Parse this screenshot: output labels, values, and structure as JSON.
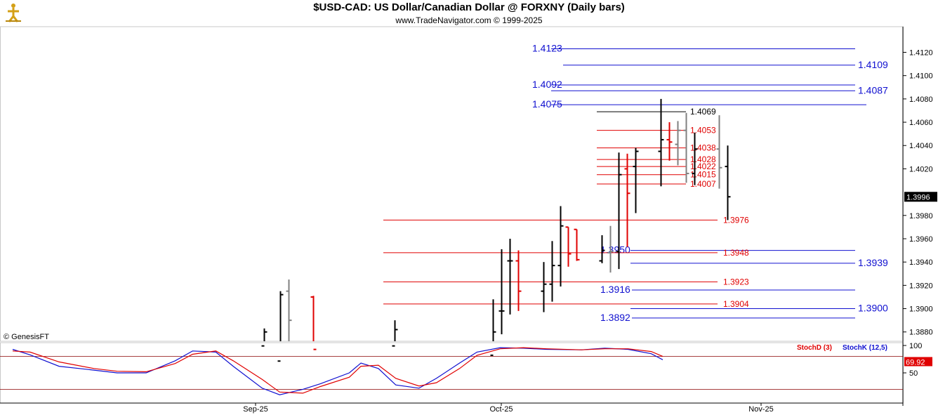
{
  "header": {
    "title": "$USD-CAD:  US Dollar/Canadian Dollar @ FORXNY  (Daily bars)",
    "subtitle": "www.TradeNavigator.com © 1999-2025",
    "logo_icon": "navigator-figure-icon"
  },
  "copyright": "© GenesisFT",
  "colors": {
    "up_bar": "#000000",
    "down_bar": "#e00000",
    "neutral_bar": "#808080",
    "fib_red": "#e00000",
    "fib_blue": "#1010d0",
    "fib_black": "#000000",
    "stoch_k": "#1010d0",
    "stoch_d": "#e00000",
    "price_badge": "#000000",
    "stoch_badge": "#e00000"
  },
  "chart_data": [
    {
      "type": "ohlc",
      "title": "$USD-CAD:  US Dollar/Canadian Dollar @ FORXNY  (Daily bars)",
      "ylim": [
        1.3872,
        1.4142
      ],
      "yticks": [
        "1.4120",
        "1.4100",
        "1.4080",
        "1.4060",
        "1.4040",
        "1.4020",
        "1.3980",
        "1.3960",
        "1.3940",
        "1.3920",
        "1.3900",
        "1.3880"
      ],
      "current_price": "1.3996",
      "x_labels": [
        "Sep-25",
        "Oct-25",
        "Nov-25"
      ],
      "bars": [
        {
          "date": "2025-09-02",
          "open": 1.3868,
          "high": 1.3883,
          "low": 1.386,
          "close": 1.388,
          "color": "up"
        },
        {
          "date": "2025-09-04",
          "open": 1.3855,
          "high": 1.3915,
          "low": 1.385,
          "close": 1.3912,
          "color": "up"
        },
        {
          "date": "2025-09-05",
          "open": 1.3915,
          "high": 1.3925,
          "low": 1.386,
          "close": 1.389,
          "color": "neutral"
        },
        {
          "date": "2025-09-08",
          "open": 1.391,
          "high": 1.3911,
          "low": 1.386,
          "close": 1.3865,
          "color": "down"
        },
        {
          "date": "2025-09-18",
          "open": 1.3868,
          "high": 1.389,
          "low": 1.386,
          "close": 1.3882,
          "color": "up"
        },
        {
          "date": "2025-09-30",
          "open": 1.386,
          "high": 1.3908,
          "low": 1.385,
          "close": 1.388,
          "color": "up"
        },
        {
          "date": "2025-10-01",
          "open": 1.3898,
          "high": 1.3951,
          "low": 1.3878,
          "close": 1.3898,
          "color": "up"
        },
        {
          "date": "2025-10-02",
          "open": 1.3941,
          "high": 1.396,
          "low": 1.3895,
          "close": 1.3941,
          "color": "up"
        },
        {
          "date": "2025-10-03",
          "open": 1.3941,
          "high": 1.395,
          "low": 1.3898,
          "close": 1.3915,
          "color": "down"
        },
        {
          "date": "2025-10-06",
          "open": 1.3915,
          "high": 1.394,
          "low": 1.3897,
          "close": 1.3921,
          "color": "up"
        },
        {
          "date": "2025-10-07",
          "open": 1.3921,
          "high": 1.3958,
          "low": 1.3906,
          "close": 1.3937,
          "color": "up"
        },
        {
          "date": "2025-10-08",
          "open": 1.3937,
          "high": 1.3988,
          "low": 1.3919,
          "close": 1.3971,
          "color": "up"
        },
        {
          "date": "2025-10-09",
          "open": 1.397,
          "high": 1.397,
          "low": 1.3936,
          "close": 1.3947,
          "color": "down"
        },
        {
          "date": "2025-10-10",
          "open": 1.3968,
          "high": 1.3968,
          "low": 1.3941,
          "close": 1.3942,
          "color": "down"
        },
        {
          "date": "2025-10-13",
          "open": 1.3941,
          "high": 1.3963,
          "low": 1.3939,
          "close": 1.395,
          "color": "up"
        },
        {
          "date": "2025-10-14",
          "open": 1.3948,
          "high": 1.3971,
          "low": 1.3931,
          "close": 1.3949,
          "color": "neutral"
        },
        {
          "date": "2025-10-15",
          "open": 1.3949,
          "high": 1.4034,
          "low": 1.3934,
          "close": 1.4015,
          "color": "up"
        },
        {
          "date": "2025-10-16",
          "open": 1.402,
          "high": 1.4033,
          "low": 1.3953,
          "close": 1.3999,
          "color": "down"
        },
        {
          "date": "2025-10-17",
          "open": 1.4022,
          "high": 1.4038,
          "low": 1.3982,
          "close": 1.4035,
          "color": "up"
        },
        {
          "date": "2025-10-20",
          "open": 1.4035,
          "high": 1.408,
          "low": 1.4005,
          "close": 1.4045,
          "color": "up"
        },
        {
          "date": "2025-10-21",
          "open": 1.4045,
          "high": 1.406,
          "low": 1.4027,
          "close": 1.4043,
          "color": "down"
        },
        {
          "date": "2025-10-22",
          "open": 1.4041,
          "high": 1.4061,
          "low": 1.4023,
          "close": 1.4053,
          "color": "neutral"
        },
        {
          "date": "2025-10-23",
          "open": 1.4053,
          "high": 1.4068,
          "low": 1.4008,
          "close": 1.4016,
          "color": "neutral"
        },
        {
          "date": "2025-10-24",
          "open": 1.4016,
          "high": 1.4051,
          "low": 1.4006,
          "close": 1.4037,
          "color": "up"
        },
        {
          "date": "2025-10-27",
          "open": 1.4037,
          "high": 1.4066,
          "low": 1.4003,
          "close": 1.4021,
          "color": "neutral"
        },
        {
          "date": "2025-10-28",
          "open": 1.4022,
          "high": 1.404,
          "low": 1.3976,
          "close": 1.3996,
          "color": "up"
        }
      ],
      "levels": [
        {
          "value": 1.4123,
          "label": "1.4123",
          "color": "blue",
          "label_side": "left"
        },
        {
          "value": 1.4109,
          "label": "1.4109",
          "color": "blue",
          "label_side": "right"
        },
        {
          "value": 1.4092,
          "label": "1.4092",
          "color": "blue",
          "label_side": "left"
        },
        {
          "value": 1.4087,
          "label": "1.4087",
          "color": "blue",
          "label_side": "right"
        },
        {
          "value": 1.4075,
          "label": "1.4075",
          "color": "blue",
          "label_side": "left"
        },
        {
          "value": 1.4069,
          "label": "1.4069",
          "color": "black",
          "label_side": "mid"
        },
        {
          "value": 1.4053,
          "label": "1.4053",
          "color": "red",
          "label_side": "mid"
        },
        {
          "value": 1.4038,
          "label": "1.4038",
          "color": "red",
          "label_side": "mid"
        },
        {
          "value": 1.4028,
          "label": "1.4028",
          "color": "red",
          "label_side": "mid"
        },
        {
          "value": 1.4022,
          "label": "1.4022",
          "color": "red",
          "label_side": "mid"
        },
        {
          "value": 1.4015,
          "label": "1.4015",
          "color": "red",
          "label_side": "mid"
        },
        {
          "value": 1.4007,
          "label": "1.4007",
          "color": "red",
          "label_side": "mid"
        },
        {
          "value": 1.3976,
          "label": "1.3976",
          "color": "red",
          "label_side": "far"
        },
        {
          "value": 1.395,
          "label": "1.3950",
          "color": "blue",
          "label_side": "mid"
        },
        {
          "value": 1.3948,
          "label": "1.3948",
          "color": "red",
          "label_side": "far"
        },
        {
          "value": 1.3939,
          "label": "1.3939",
          "color": "blue",
          "label_side": "right"
        },
        {
          "value": 1.3923,
          "label": "1.3923",
          "color": "red",
          "label_side": "far"
        },
        {
          "value": 1.3916,
          "label": "1.3916",
          "color": "blue",
          "label_side": "mid"
        },
        {
          "value": 1.3904,
          "label": "1.3904",
          "color": "red",
          "label_side": "far"
        },
        {
          "value": 1.39,
          "label": "1.3900",
          "color": "blue",
          "label_side": "right"
        },
        {
          "value": 1.3892,
          "label": "1.3892",
          "color": "blue",
          "label_side": "mid"
        }
      ]
    },
    {
      "type": "line",
      "legend": [
        "StochD (3)",
        "StochK (12,5)"
      ],
      "ylim": [
        0,
        100
      ],
      "yticks": [
        "100",
        "50"
      ],
      "reference_lines": [
        80,
        20
      ],
      "current_value": "69.92",
      "series": [
        {
          "name": "StochK (12,5)",
          "color": "blue",
          "points": [
            [
              "2025-08-04",
              93
            ],
            [
              "2025-08-07",
              83
            ],
            [
              "2025-08-12",
              62
            ],
            [
              "2025-08-18",
              55
            ],
            [
              "2025-08-22",
              50
            ],
            [
              "2025-08-27",
              50
            ],
            [
              "2025-09-01",
              72
            ],
            [
              "2025-09-04",
              90
            ],
            [
              "2025-09-08",
              88
            ],
            [
              "2025-09-11",
              62
            ],
            [
              "2025-09-16",
              22
            ],
            [
              "2025-09-19",
              10
            ],
            [
              "2025-09-23",
              20
            ],
            [
              "2025-09-26",
              30
            ],
            [
              "2025-10-01",
              50
            ],
            [
              "2025-10-03",
              68
            ],
            [
              "2025-10-06",
              58
            ],
            [
              "2025-10-09",
              28
            ],
            [
              "2025-10-13",
              22
            ],
            [
              "2025-10-16",
              40
            ],
            [
              "2025-10-20",
              68
            ],
            [
              "2025-10-23",
              88
            ],
            [
              "2025-10-27",
              96
            ],
            [
              "2025-10-31",
              95
            ],
            [
              "2025-11-04",
              93
            ],
            [
              "2025-11-10",
              92
            ],
            [
              "2025-11-14",
              95
            ],
            [
              "2025-11-18",
              93
            ],
            [
              "2025-11-22",
              85
            ],
            [
              "2025-11-24",
              74
            ]
          ]
        },
        {
          "name": "StochD (3)",
          "color": "red",
          "points": [
            [
              "2025-08-04",
              90
            ],
            [
              "2025-08-07",
              88
            ],
            [
              "2025-08-12",
              70
            ],
            [
              "2025-08-18",
              58
            ],
            [
              "2025-08-22",
              53
            ],
            [
              "2025-08-27",
              52
            ],
            [
              "2025-09-01",
              67
            ],
            [
              "2025-09-04",
              84
            ],
            [
              "2025-09-08",
              90
            ],
            [
              "2025-09-11",
              72
            ],
            [
              "2025-09-16",
              38
            ],
            [
              "2025-09-19",
              15
            ],
            [
              "2025-09-23",
              13
            ],
            [
              "2025-09-26",
              25
            ],
            [
              "2025-10-01",
              42
            ],
            [
              "2025-10-03",
              62
            ],
            [
              "2025-10-06",
              64
            ],
            [
              "2025-10-09",
              40
            ],
            [
              "2025-10-13",
              26
            ],
            [
              "2025-10-16",
              32
            ],
            [
              "2025-10-20",
              58
            ],
            [
              "2025-10-23",
              82
            ],
            [
              "2025-10-27",
              94
            ],
            [
              "2025-10-31",
              96
            ],
            [
              "2025-11-04",
              94
            ],
            [
              "2025-11-10",
              92
            ],
            [
              "2025-11-14",
              94
            ],
            [
              "2025-11-18",
              94
            ],
            [
              "2025-11-22",
              89
            ],
            [
              "2025-11-24",
              80
            ]
          ]
        }
      ]
    }
  ]
}
